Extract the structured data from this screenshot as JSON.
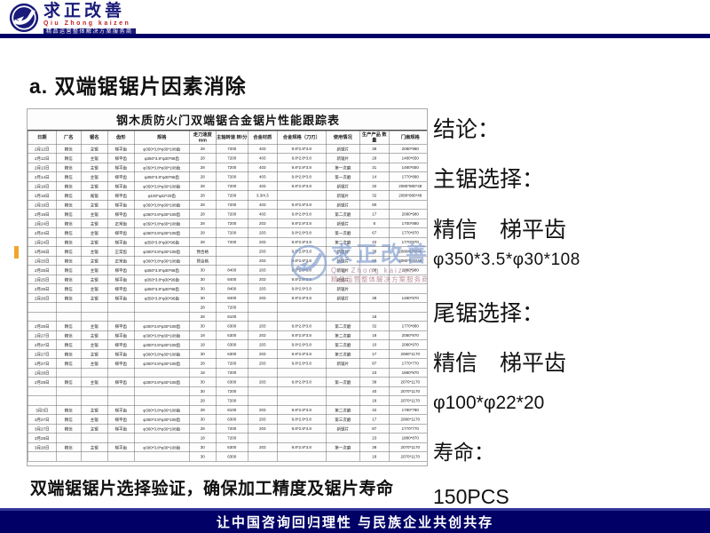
{
  "header": {
    "brand": "求正改善",
    "romanized": "Qiu Zhong kaizen",
    "tagline": "精品运营整体解决方案服务商"
  },
  "title": "a.  双端锯锯片因素消除",
  "table": {
    "title": "钢木质防火门双端锯合金锯片性能跟踪表",
    "columns": [
      "日期",
      "厂名",
      "锯名",
      "齿形",
      "规格",
      "走刀速度 mm",
      "主轴转速 转/分",
      "合金材质",
      "合金规格（刀刃）",
      "使用情况",
      "生产产品 数量",
      "门扇规格"
    ],
    "rows": [
      [
        "2月12日",
        "精信",
        "主锯",
        "梯平齿",
        "φ350*3.8*φ30*108齿",
        "28",
        "7200",
        "403",
        "9.8*2.8*3.8",
        "新锯片",
        "38",
        "2080*980"
      ],
      [
        "2月12日",
        "精信",
        "主锯",
        "梯平齿",
        "φ350*3.8*φ30*96齿",
        "28",
        "7200",
        "403",
        "9.8*2.8*3.8",
        "新锯片",
        "29",
        "1480*650"
      ],
      [
        "2月13日",
        "精信",
        "主锯",
        "梯平齿",
        "φ350*3.8*φ30*108齿",
        "28",
        "7200",
        "403",
        "9.8*2.8*3.8",
        "第一次磨",
        "31",
        "1480*650"
      ],
      [
        "2月14日",
        "精信",
        "主锯",
        "梯平齿",
        "φ350*3.8*φ30*96齿",
        "28",
        "7200",
        "403",
        "9.8*2.8*3.8",
        "第一次磨",
        "14",
        "1770*880"
      ],
      [
        "2月18日",
        "精信",
        "主锯",
        "梯平齿",
        "φ350*3.8*φ30*108齿",
        "28",
        "7200",
        "403",
        "9.8*2.8*3.8",
        "新锯片",
        "32",
        "2080*980*48"
      ],
      [
        "2月18日",
        "精信",
        "尾锯",
        "梯平齿",
        "φ100*φ22*20齿",
        "28",
        "7200",
        "3.3/4.3",
        "",
        "新锯片",
        "32",
        "2080*980*48"
      ],
      [
        "2月19日",
        "精信",
        "主锯",
        "梯平齿",
        "φ350*3.8*φ30*108齿",
        "28",
        "7200",
        "403",
        "9.8*2.8*3.8",
        "新锯片",
        "80",
        ""
      ],
      [
        "2月19日",
        "精信",
        "主锯",
        "梯平齿",
        "φ350*3.8*φ30*108齿",
        "28",
        "7200",
        "403",
        "9.8*2.8*3.8",
        "第二次磨",
        "17",
        "2080*980"
      ],
      [
        "2月24日",
        "精信",
        "主锯",
        "正常齿",
        "φ350*3.8*φ30*108齿",
        "28",
        "7200",
        "203",
        "9.8*2.8*3.8",
        "新锯片",
        "8",
        "1700*880"
      ],
      [
        "2月24日",
        "精信",
        "主锯",
        "梯平齿",
        "φ350*3.8*φ30*108齿",
        "28",
        "7200",
        "203",
        "9.8*2.8*3.8",
        "第一次磨",
        "67",
        "1770*870"
      ],
      [
        "2月24日",
        "精信",
        "主锯",
        "梯平齿",
        "φ350*3.8*φ30*96齿",
        "28",
        "7200",
        "203",
        "9.8*2.8*3.8",
        "第二次磨",
        "22",
        "1770*870"
      ],
      [
        "2月25日",
        "精信",
        "主锯",
        "正常齿",
        "φ300*3.8*φ30*108齿",
        "预合格",
        "",
        "203",
        "9.8*2.8*3.8",
        "新锯片",
        "38",
        "2080*970*30"
      ],
      [
        "2月25日",
        "精信",
        "主锯",
        "正常齿",
        "φ300*3.8*φ30*108齿",
        "预合格",
        "",
        "203",
        "9.8*2.8*3.8",
        "新锯片",
        "80",
        "2080*970*48"
      ],
      [
        "2月25日",
        "精信",
        "主锯",
        "梯平齿",
        "φ350*3.8*φ30*96齿",
        "30",
        "8400",
        "203",
        "9.8*2.8*3.8",
        "新锯片",
        "30",
        "2080*980"
      ],
      [
        "2月25日",
        "精信",
        "主锯",
        "梯平齿",
        "φ350*3.8*φ30*96齿",
        "30",
        "8400",
        "203",
        "9.8*2.8*3.8",
        "新锯片",
        "",
        ""
      ],
      [
        "2月25日",
        "精信",
        "主锯",
        "梯平齿",
        "φ350*3.8*φ30*96齿",
        "30",
        "8400",
        "203",
        "9.8*2.8*3.8",
        "新锯片",
        "",
        ""
      ],
      [
        "2月26日",
        "精信",
        "主锯",
        "梯平齿",
        "φ350*3.8*φ30*96齿",
        "30",
        "8400",
        "203",
        "9.8*2.8*3.8",
        "新锯片",
        "38",
        "1480*870"
      ],
      [
        "",
        "",
        "",
        "",
        "",
        "28",
        "7200",
        "",
        "",
        "",
        "",
        ""
      ],
      [
        "",
        "",
        "",
        "",
        "",
        "28",
        "8100",
        "",
        "",
        "",
        "18",
        ""
      ],
      [
        "2月26日",
        "精信",
        "主锯",
        "梯平齿",
        "φ300*3.8*φ30*108齿",
        "30",
        "6300",
        "203",
        "9.8*2.8*3.8",
        "第二次磨",
        "32",
        "1770*880"
      ],
      [
        "2月27日",
        "精信",
        "主锯",
        "梯平齿",
        "φ300*3.8*φ30*108齿",
        "18",
        "6300",
        "203",
        "9.8*2.8*3.8",
        "第二次磨",
        "18",
        "2080*970"
      ],
      [
        "2月27日",
        "精信",
        "主锯",
        "梯平齿",
        "φ300*3.8*φ30*108齿",
        "18",
        "6300",
        "203",
        "9.8*2.8*3.8",
        "第二次磨",
        "10",
        "2080*970"
      ],
      [
        "2月27日",
        "精信",
        "主锯",
        "梯平齿",
        "φ300*3.8*φ30*108齿",
        "30",
        "6300",
        "203",
        "9.8*2.8*3.8",
        "第三次磨",
        "17",
        "2080*1170"
      ],
      [
        "2月27日",
        "精信",
        "主锯",
        "梯平齿",
        "φ300*3.8*φ30*108齿",
        "28",
        "7200",
        "203",
        "9.8*2.8*3.8",
        "新锯片",
        "87",
        "1770*770"
      ],
      [
        "2月28日",
        "",
        "",
        "",
        "",
        "18",
        "7200",
        "",
        "",
        "",
        "23",
        "1880*870"
      ],
      [
        "2月28日",
        "精信",
        "主锯",
        "梯平齿",
        "φ300*3.8*φ30*108齿",
        "30",
        "6300",
        "203",
        "9.8*2.8*3.8",
        "第一次磨",
        "38",
        "2070*1170"
      ],
      [
        "",
        "",
        "",
        "",
        "",
        "30",
        "7200",
        "",
        "",
        "",
        "40",
        "2070*1170"
      ],
      [
        "",
        "",
        "",
        "",
        "",
        "28",
        "7200",
        "",
        "",
        "",
        "18",
        "2070*1170"
      ],
      [
        "3月3日",
        "精信",
        "主锯",
        "梯平齿",
        "φ300*3.8*φ30*108齿",
        "28",
        "8100",
        "203",
        "9.8*2.8*3.8",
        "第二次磨",
        "42",
        "1780*780"
      ],
      [
        "3月27日",
        "精信",
        "主锯",
        "梯平齿",
        "φ300*3.8*φ30*108齿",
        "30",
        "6300",
        "203",
        "9.8*2.8*3.8",
        "第三次磨",
        "17",
        "2080*1170"
      ],
      [
        "3月27日",
        "精信",
        "主锯",
        "梯平齿",
        "φ300*3.8*φ30*108齿",
        "28",
        "7200",
        "203",
        "9.8*2.8*3.8",
        "新锯片",
        "87",
        "1770*770"
      ],
      [
        "3月28日",
        "",
        "",
        "",
        "",
        "18",
        "7200",
        "",
        "",
        "",
        "23",
        "1880*870"
      ],
      [
        "3月28日",
        "精信",
        "主锯",
        "梯平齿",
        "φ300*3.8*φ30*108齿",
        "30",
        "6300",
        "203",
        "9.8*2.8*3.8",
        "第一次磨",
        "38",
        "2070*1170"
      ],
      [
        "",
        "",
        "",
        "",
        "",
        "30",
        "6300",
        "",
        "",
        "",
        "18",
        "2070*1170"
      ]
    ]
  },
  "conclusion": {
    "heading": "结论：",
    "main_saw_label": "主锯选择：",
    "main_saw_value": "精信　梯平齿",
    "main_saw_spec": "φ350*3.5*φ30*108",
    "tail_saw_label": "尾锯选择：",
    "tail_saw_value": "精信　梯平齿",
    "tail_saw_spec": "φ100*φ22*20",
    "life_label": "寿命：",
    "life_value": "150PCS"
  },
  "statement": "双端锯锯片选择验证，确保加工精度及锯片寿命",
  "footer": {
    "slogan": "让中国咨询回归理性  与民族企业共创共存"
  },
  "colors": {
    "navy": "#000066",
    "brand_red": "#c22323",
    "marker_orange": "#f0a62e"
  }
}
